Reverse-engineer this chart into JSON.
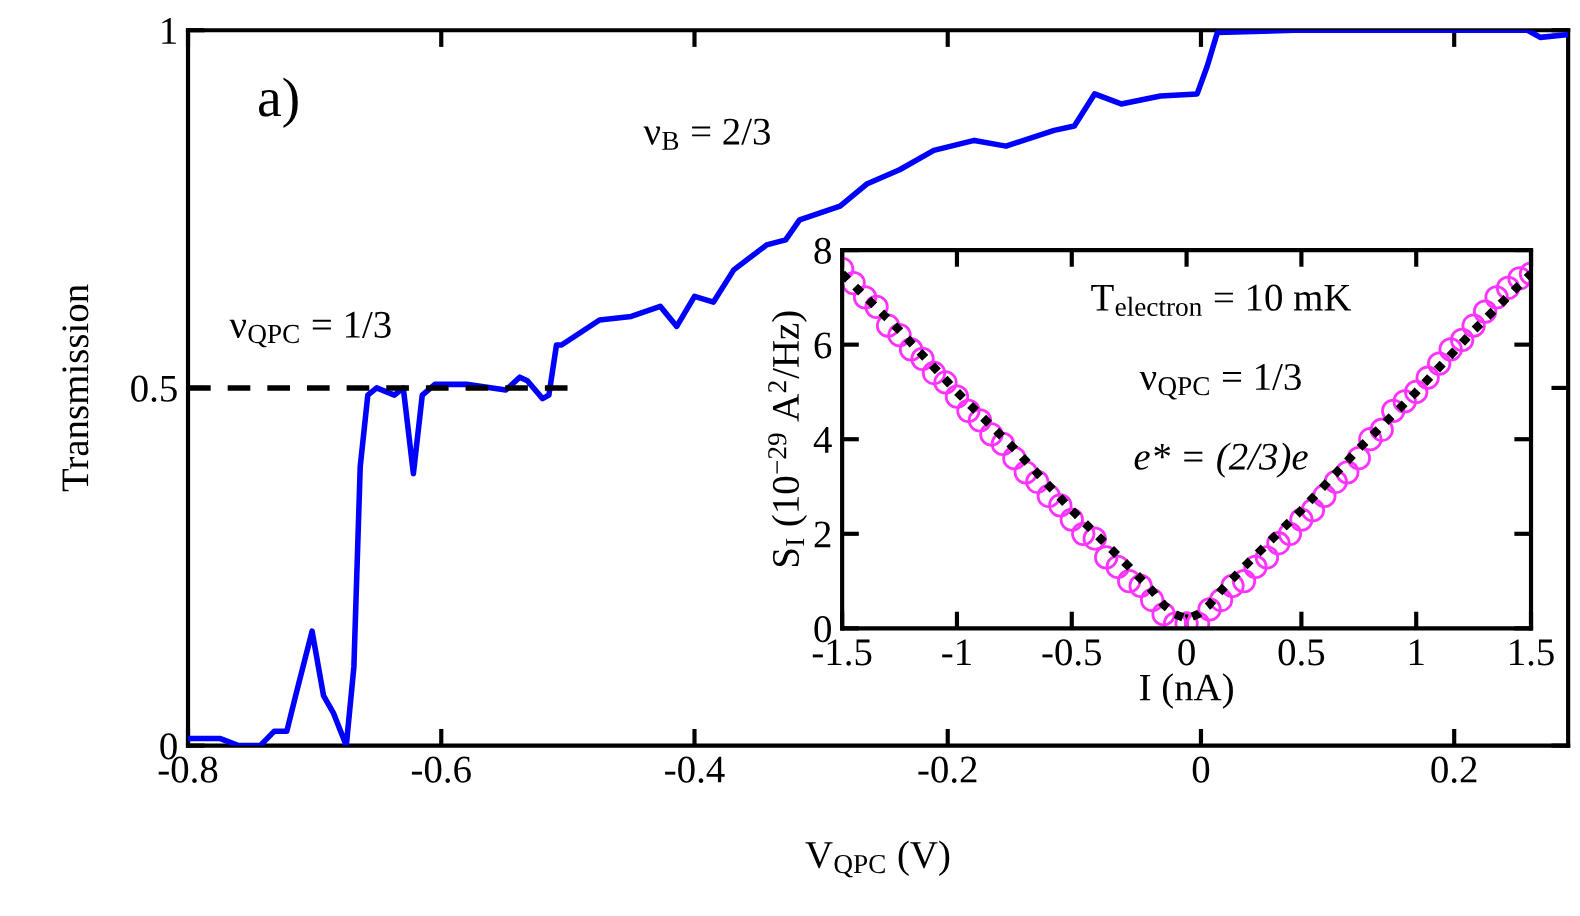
{
  "chart_data": [
    {
      "type": "line",
      "xlabel": "V$_{QPC}$ (V)",
      "ylabel": "Transmission",
      "annotations": [
        "a)",
        "ν$_{QPC}$ = 1/3",
        "ν$_{B}$ = 2/3"
      ],
      "xlim": [
        -0.8,
        0.29
      ],
      "ylim": [
        0,
        1
      ],
      "xticks": [
        -0.8,
        -0.6,
        -0.4,
        -0.2,
        0,
        0.2
      ],
      "yticks": [
        0,
        0.5,
        1
      ],
      "grid": false,
      "series": [
        {
          "color": "#0000ff",
          "line_style": "solid",
          "x": [
            -0.8,
            -0.775,
            -0.76,
            -0.743,
            -0.732,
            -0.722,
            -0.715,
            -0.702,
            -0.693,
            -0.685,
            -0.675,
            -0.669,
            -0.664,
            -0.658,
            -0.651,
            -0.637,
            -0.63,
            -0.622,
            -0.615,
            -0.605,
            -0.58,
            -0.549,
            -0.538,
            -0.532,
            -0.52,
            -0.515,
            -0.509,
            -0.505,
            -0.475,
            -0.45,
            -0.427,
            -0.414,
            -0.4,
            -0.385,
            -0.369,
            -0.343,
            -0.328,
            -0.317,
            -0.285,
            -0.264,
            -0.238,
            -0.211,
            -0.179,
            -0.154,
            -0.116,
            -0.1,
            -0.084,
            -0.063,
            -0.032,
            -0.003,
            0.005,
            0.013,
            0.074,
            0.179,
            0.258,
            0.268,
            0.29
          ],
          "values": [
            0.01,
            0.01,
            0.0,
            0.0,
            0.02,
            0.02,
            0.07,
            0.16,
            0.07,
            0.045,
            0.0,
            0.11,
            0.39,
            0.49,
            0.5,
            0.49,
            0.5,
            0.38,
            0.49,
            0.505,
            0.505,
            0.497,
            0.515,
            0.51,
            0.485,
            0.49,
            0.56,
            0.56,
            0.595,
            0.6,
            0.614,
            0.586,
            0.628,
            0.62,
            0.665,
            0.7,
            0.707,
            0.735,
            0.754,
            0.785,
            0.805,
            0.832,
            0.846,
            0.838,
            0.86,
            0.866,
            0.911,
            0.897,
            0.908,
            0.911,
            0.95,
            0.997,
            1.0,
            1.0,
            1.0,
            0.99,
            0.994
          ]
        },
        {
          "color": "#000000",
          "line_style": "dashed",
          "x": [
            -0.8,
            -0.5
          ],
          "values": [
            0.5,
            0.5
          ]
        }
      ]
    },
    {
      "type": "line",
      "xlabel": "I (nA)",
      "ylabel": "S$_{I}$ (10$^{−29}$ A$^{2}$/Hz)",
      "annotations": [
        "T$_{electron}$ = 10 mK",
        "ν$_{QPC}$ = 1/3",
        "e* = (2/3)e"
      ],
      "xlim": [
        -1.5,
        1.5
      ],
      "ylim": [
        0,
        8
      ],
      "xticks": [
        -1.5,
        -1,
        -0.5,
        0,
        0.5,
        1,
        1.5
      ],
      "yticks": [
        0,
        2,
        4,
        6,
        8
      ],
      "grid": false,
      "series": [
        {
          "type": "scatter",
          "color": "#ff33ff",
          "marker": "circle",
          "x": [
            -1.5,
            -1.45,
            -1.4,
            -1.35,
            -1.3,
            -1.25,
            -1.2,
            -1.15,
            -1.1,
            -1.05,
            -1.0,
            -0.95,
            -0.9,
            -0.85,
            -0.8,
            -0.75,
            -0.7,
            -0.65,
            -0.6,
            -0.55,
            -0.5,
            -0.45,
            -0.4,
            -0.35,
            -0.3,
            -0.25,
            -0.2,
            -0.15,
            -0.1,
            -0.05,
            0.0,
            0.05,
            0.1,
            0.15,
            0.2,
            0.25,
            0.3,
            0.35,
            0.4,
            0.45,
            0.5,
            0.55,
            0.6,
            0.65,
            0.7,
            0.75,
            0.8,
            0.85,
            0.9,
            0.95,
            1.0,
            1.05,
            1.1,
            1.15,
            1.2,
            1.25,
            1.3,
            1.35,
            1.4,
            1.45,
            1.5
          ],
          "values": [
            7.6,
            7.3,
            7.0,
            6.8,
            6.4,
            6.2,
            5.9,
            5.7,
            5.4,
            5.2,
            4.9,
            4.6,
            4.4,
            4.1,
            3.9,
            3.6,
            3.3,
            3.1,
            2.8,
            2.6,
            2.3,
            2.0,
            1.9,
            1.5,
            1.3,
            1.0,
            0.9,
            0.6,
            0.3,
            0.1,
            0.1,
            0.1,
            0.4,
            0.6,
            0.9,
            1.0,
            1.3,
            1.5,
            1.8,
            2.0,
            2.3,
            2.5,
            2.8,
            3.1,
            3.3,
            3.6,
            4.0,
            4.2,
            4.6,
            4.8,
            5.0,
            5.3,
            5.6,
            5.9,
            6.1,
            6.4,
            6.7,
            7.0,
            7.2,
            7.4,
            7.5
          ]
        },
        {
          "type": "line",
          "color": "#000000",
          "line_style": "dotted",
          "x": [
            -1.5,
            -1.25,
            -1.0,
            -0.75,
            -0.5,
            -0.25,
            -0.15,
            -0.1,
            -0.05,
            0.0,
            0.05,
            0.1,
            0.15,
            0.25,
            0.5,
            0.75,
            1.0,
            1.25,
            1.5
          ],
          "values": [
            7.5,
            6.3,
            5.0,
            3.8,
            2.5,
            1.3,
            0.8,
            0.5,
            0.3,
            0.2,
            0.3,
            0.5,
            0.8,
            1.3,
            2.5,
            3.8,
            5.0,
            6.3,
            7.5
          ]
        }
      ]
    }
  ]
}
